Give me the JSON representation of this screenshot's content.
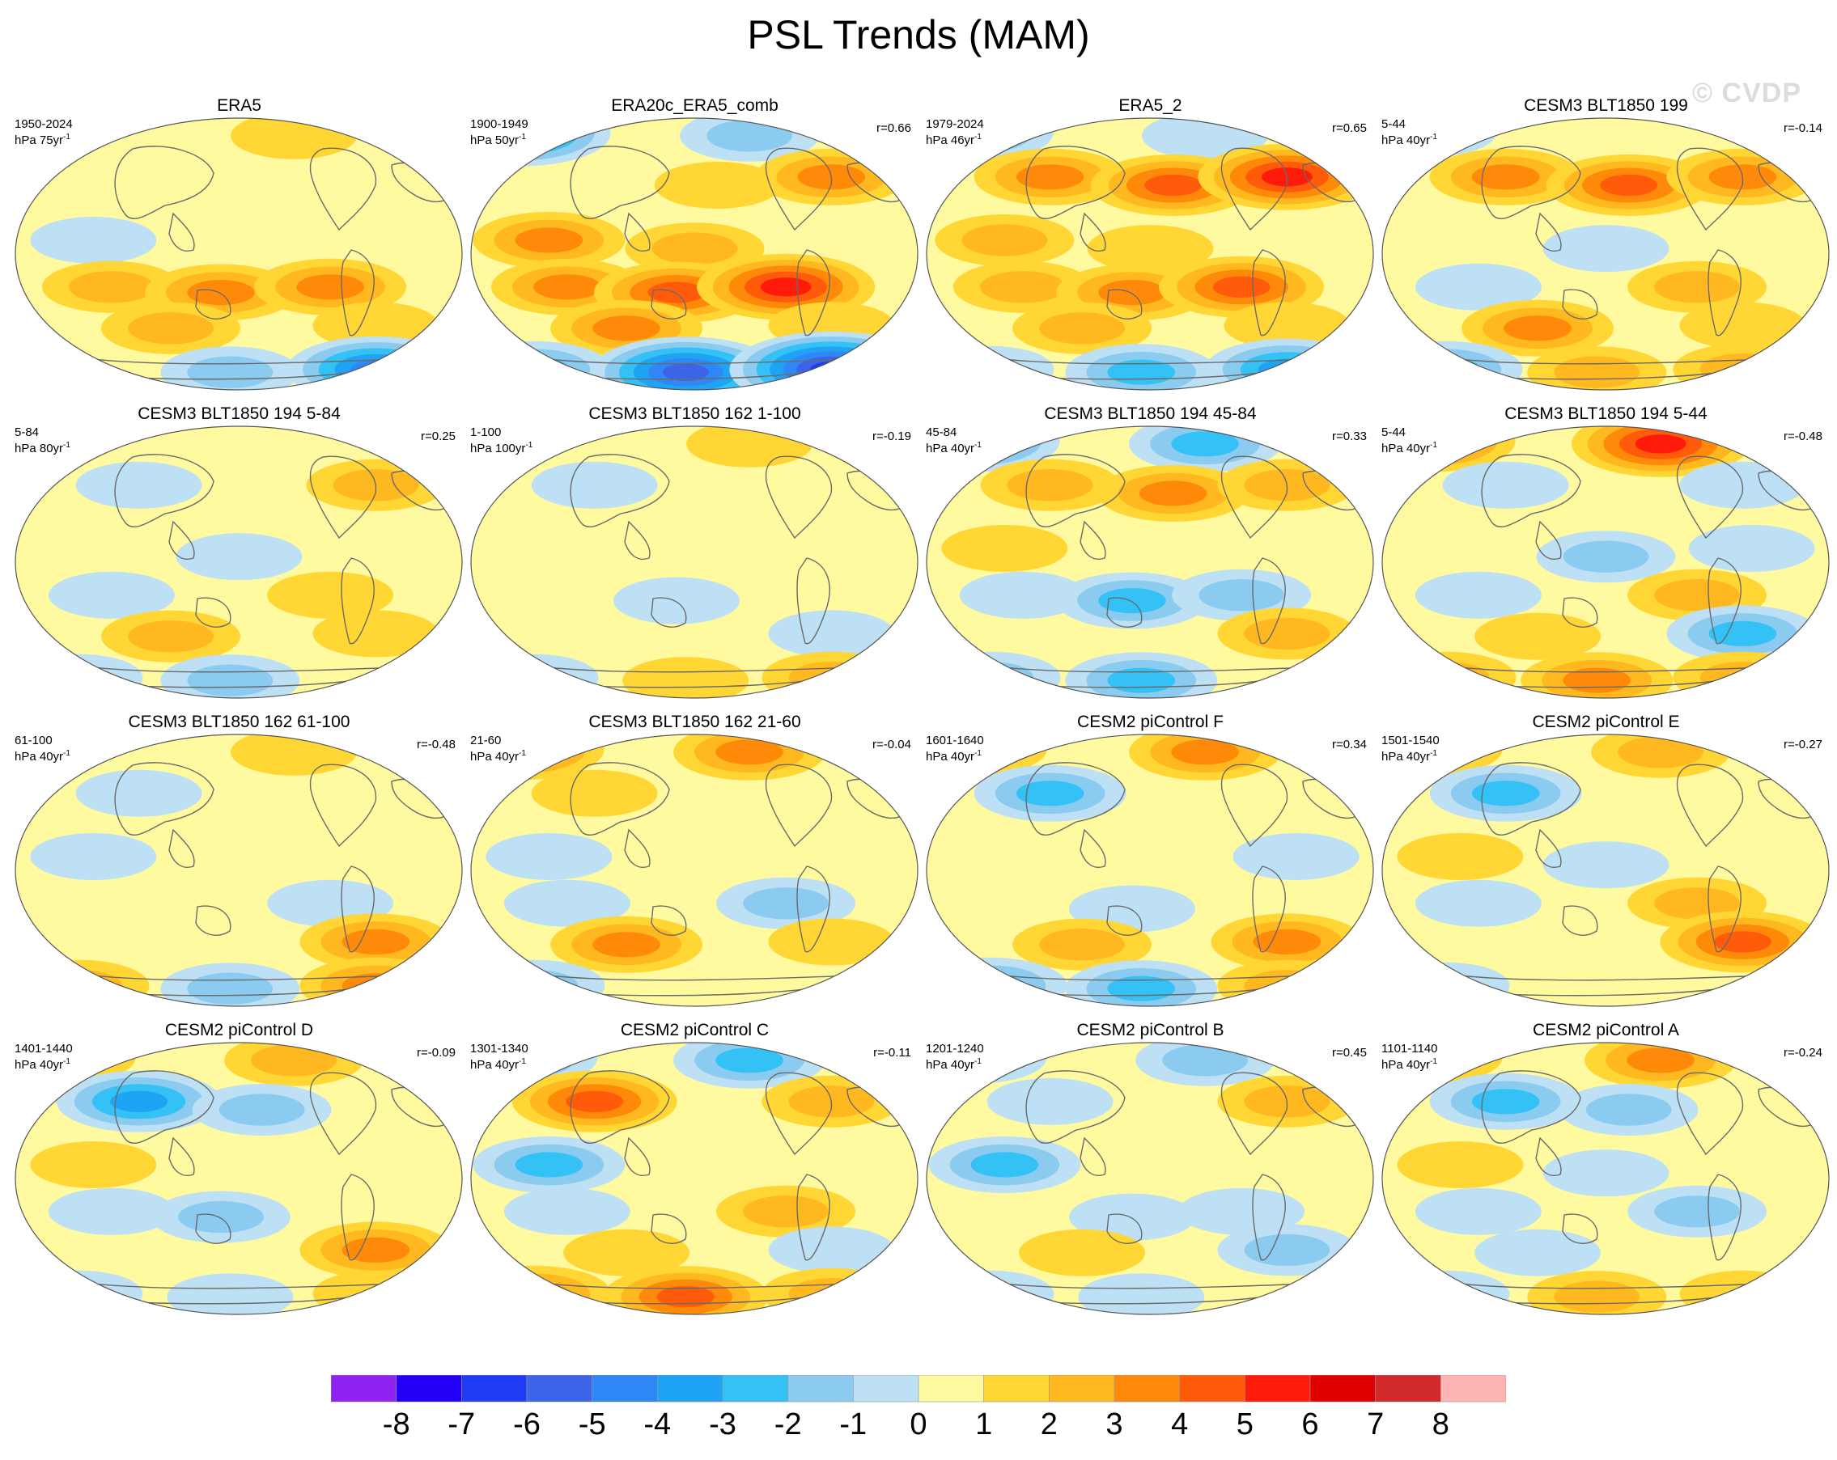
{
  "title": "PSL Trends (MAM)",
  "watermark": "© CVDP",
  "chart_data": {
    "type": "heatmap",
    "title": "PSL Trends (MAM)",
    "projection": "robinson-like global map, Pacific centered",
    "colorbar": {
      "labels": [
        "-8",
        "-7",
        "-6",
        "-5",
        "-4",
        "-3",
        "-2",
        "-1",
        "0",
        "1",
        "2",
        "3",
        "4",
        "5",
        "6",
        "7",
        "8"
      ],
      "colors": [
        "#8f22f0",
        "#2200f5",
        "#1f3cf5",
        "#3c64e8",
        "#2f87f5",
        "#1fa3f5",
        "#34c1f5",
        "#8ccbf0",
        "#bde0f5",
        "#fffaa0",
        "#ffd633",
        "#ffb81f",
        "#ff8a0a",
        "#ff5b0a",
        "#ff1a0a",
        "#e00000",
        "#d22a2a",
        "#ffb4b4"
      ]
    },
    "panels": [
      {
        "title": "ERA5",
        "period": "1950-2024",
        "units": "hPa 75yr",
        "corr": "",
        "pattern": [
          0,
          1,
          0,
          0,
          0,
          -1,
          0,
          0,
          2,
          3,
          3,
          2,
          1,
          0,
          -2,
          -5
        ]
      },
      {
        "title": "ERA20c_ERA5_comb",
        "period": "1900-1949",
        "units": "hPa 50yr",
        "corr": "r=0.66",
        "pattern": [
          -5,
          -2,
          0,
          1,
          3,
          3,
          2,
          0,
          3,
          4,
          5,
          3,
          1,
          -3,
          -6,
          -7
        ]
      },
      {
        "title": "ERA5_2",
        "period": "1979-2024",
        "units": "hPa 46yr",
        "corr": "r=0.65",
        "pattern": [
          -3,
          -1,
          3,
          4,
          5,
          2,
          1,
          0,
          2,
          3,
          4,
          2,
          1,
          -1,
          -3,
          -4
        ]
      },
      {
        "title": "CESM3 BLT1850 199",
        "period": "5-44",
        "units": "hPa 40yr",
        "corr": "r=-0.14",
        "pattern": [
          -1,
          0,
          3,
          4,
          3,
          0,
          -1,
          0,
          -1,
          0,
          2,
          3,
          1,
          -3,
          2,
          2
        ]
      },
      {
        "title": "CESM3 BLT1850 194 5-84",
        "period": "5-84",
        "units": "hPa 80yr",
        "corr": "r=0.25",
        "pattern": [
          0,
          0,
          -1,
          0,
          2,
          0,
          -1,
          0,
          -1,
          0,
          1,
          2,
          1,
          -1,
          -2,
          0
        ]
      },
      {
        "title": "CESM3 BLT1850 162 1-100",
        "period": "1-100",
        "units": "hPa 100yr",
        "corr": "r=-0.19",
        "pattern": [
          0,
          1,
          -1,
          0,
          0,
          0,
          0,
          0,
          0,
          -1,
          0,
          0,
          -1,
          -1,
          1,
          2
        ]
      },
      {
        "title": "CESM3 BLT1850 194 45-84",
        "period": "45-84",
        "units": "hPa 40yr",
        "corr": "r=0.33",
        "pattern": [
          -4,
          -3,
          2,
          3,
          2,
          1,
          0,
          0,
          -1,
          -3,
          -2,
          0,
          2,
          -2,
          -3,
          0
        ]
      },
      {
        "title": "CESM3 BLT1850 194 5-44",
        "period": "5-44",
        "units": "hPa 40yr",
        "corr": "r=-0.48",
        "pattern": [
          4,
          5,
          -1,
          0,
          -1,
          0,
          -2,
          -1,
          -1,
          0,
          2,
          1,
          -3,
          2,
          3,
          2
        ]
      },
      {
        "title": "CESM3 BLT1850 162 61-100",
        "period": "61-100",
        "units": "hPa 40yr",
        "corr": "r=-0.48",
        "pattern": [
          0,
          1,
          -1,
          0,
          0,
          -1,
          0,
          0,
          0,
          0,
          -1,
          0,
          3,
          2,
          -2,
          3
        ]
      },
      {
        "title": "CESM3 BLT1850 162 21-60",
        "period": "21-60",
        "units": "hPa 40yr",
        "corr": "r=-0.04",
        "pattern": [
          4,
          3,
          1,
          0,
          0,
          -1,
          0,
          0,
          -1,
          0,
          -2,
          3,
          1,
          -2,
          0,
          0
        ]
      },
      {
        "title": "CESM2 piControl F",
        "period": "1601-1640",
        "units": "hPa 40yr",
        "corr": "r=0.34",
        "pattern": [
          2,
          3,
          -3,
          0,
          0,
          0,
          0,
          -1,
          0,
          -1,
          0,
          2,
          3,
          -3,
          -3,
          2
        ]
      },
      {
        "title": "CESM2 piControl E",
        "period": "1501-1540",
        "units": "hPa 40yr",
        "corr": "r=-0.27",
        "pattern": [
          2,
          2,
          -3,
          0,
          0,
          1,
          -1,
          0,
          -1,
          0,
          2,
          0,
          4,
          -1,
          0,
          0
        ]
      },
      {
        "title": "CESM2 piControl D",
        "period": "1401-1440",
        "units": "hPa 40yr",
        "corr": "r=-0.09",
        "pattern": [
          2,
          2,
          -4,
          -2,
          0,
          1,
          0,
          0,
          -1,
          -2,
          0,
          0,
          3,
          -1,
          -1,
          1
        ]
      },
      {
        "title": "CESM2 piControl C",
        "period": "1301-1340",
        "units": "hPa 40yr",
        "corr": "r=-0.11",
        "pattern": [
          -3,
          -3,
          4,
          0,
          2,
          -3,
          0,
          0,
          -1,
          0,
          2,
          1,
          -1,
          3,
          4,
          2
        ]
      },
      {
        "title": "CESM2 piControl B",
        "period": "1201-1240",
        "units": "hPa 40yr",
        "corr": "r=0.45",
        "pattern": [
          -2,
          -2,
          -1,
          0,
          2,
          -3,
          0,
          0,
          0,
          -1,
          -1,
          1,
          -2,
          -1,
          -1,
          0
        ]
      },
      {
        "title": "CESM2 piControl A",
        "period": "1101-1140",
        "units": "hPa 40yr",
        "corr": "r=-0.24",
        "pattern": [
          2,
          3,
          -3,
          -2,
          0,
          1,
          -1,
          0,
          -1,
          0,
          -2,
          -1,
          0,
          -1,
          2,
          1
        ]
      }
    ]
  }
}
